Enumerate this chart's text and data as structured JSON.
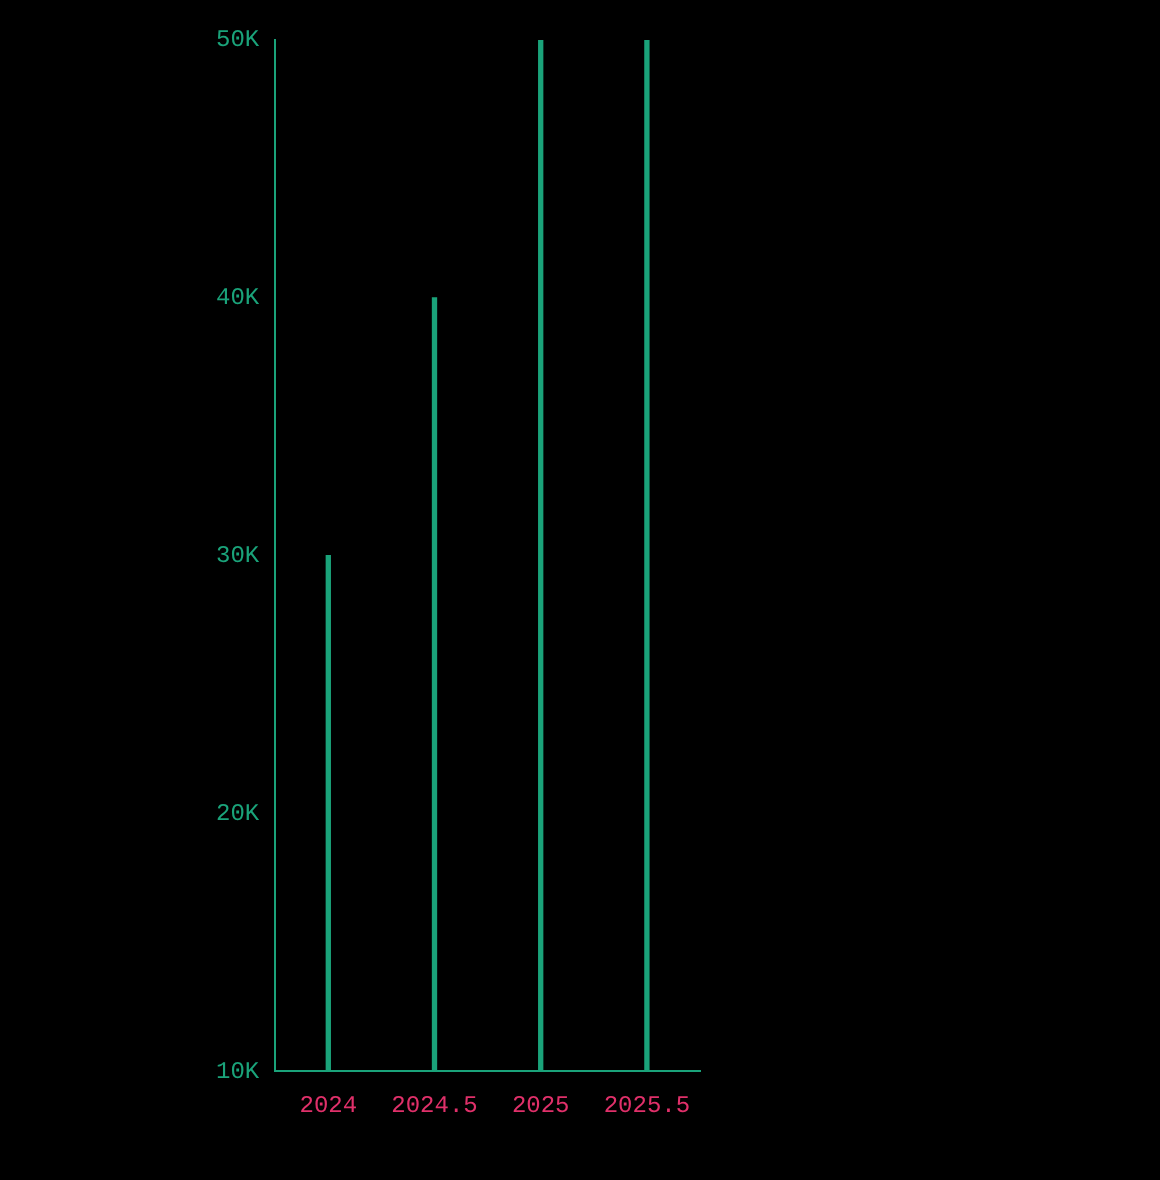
{
  "chart_data": {
    "type": "bar",
    "categories": [
      "2024",
      "2024.5",
      "2025",
      "2025.5"
    ],
    "series": [
      {
        "color": "#1aa37a",
        "values": [
          30000,
          40000,
          50000,
          50000
        ]
      }
    ],
    "ylim": [
      10000,
      50000
    ],
    "yticks": [
      {
        "value": 10000,
        "label": "10K"
      },
      {
        "value": 20000,
        "label": "20K"
      },
      {
        "value": 30000,
        "label": "30K"
      },
      {
        "value": 40000,
        "label": "40K"
      },
      {
        "value": 50000,
        "label": "50K"
      }
    ],
    "grid": false,
    "legend": false
  }
}
